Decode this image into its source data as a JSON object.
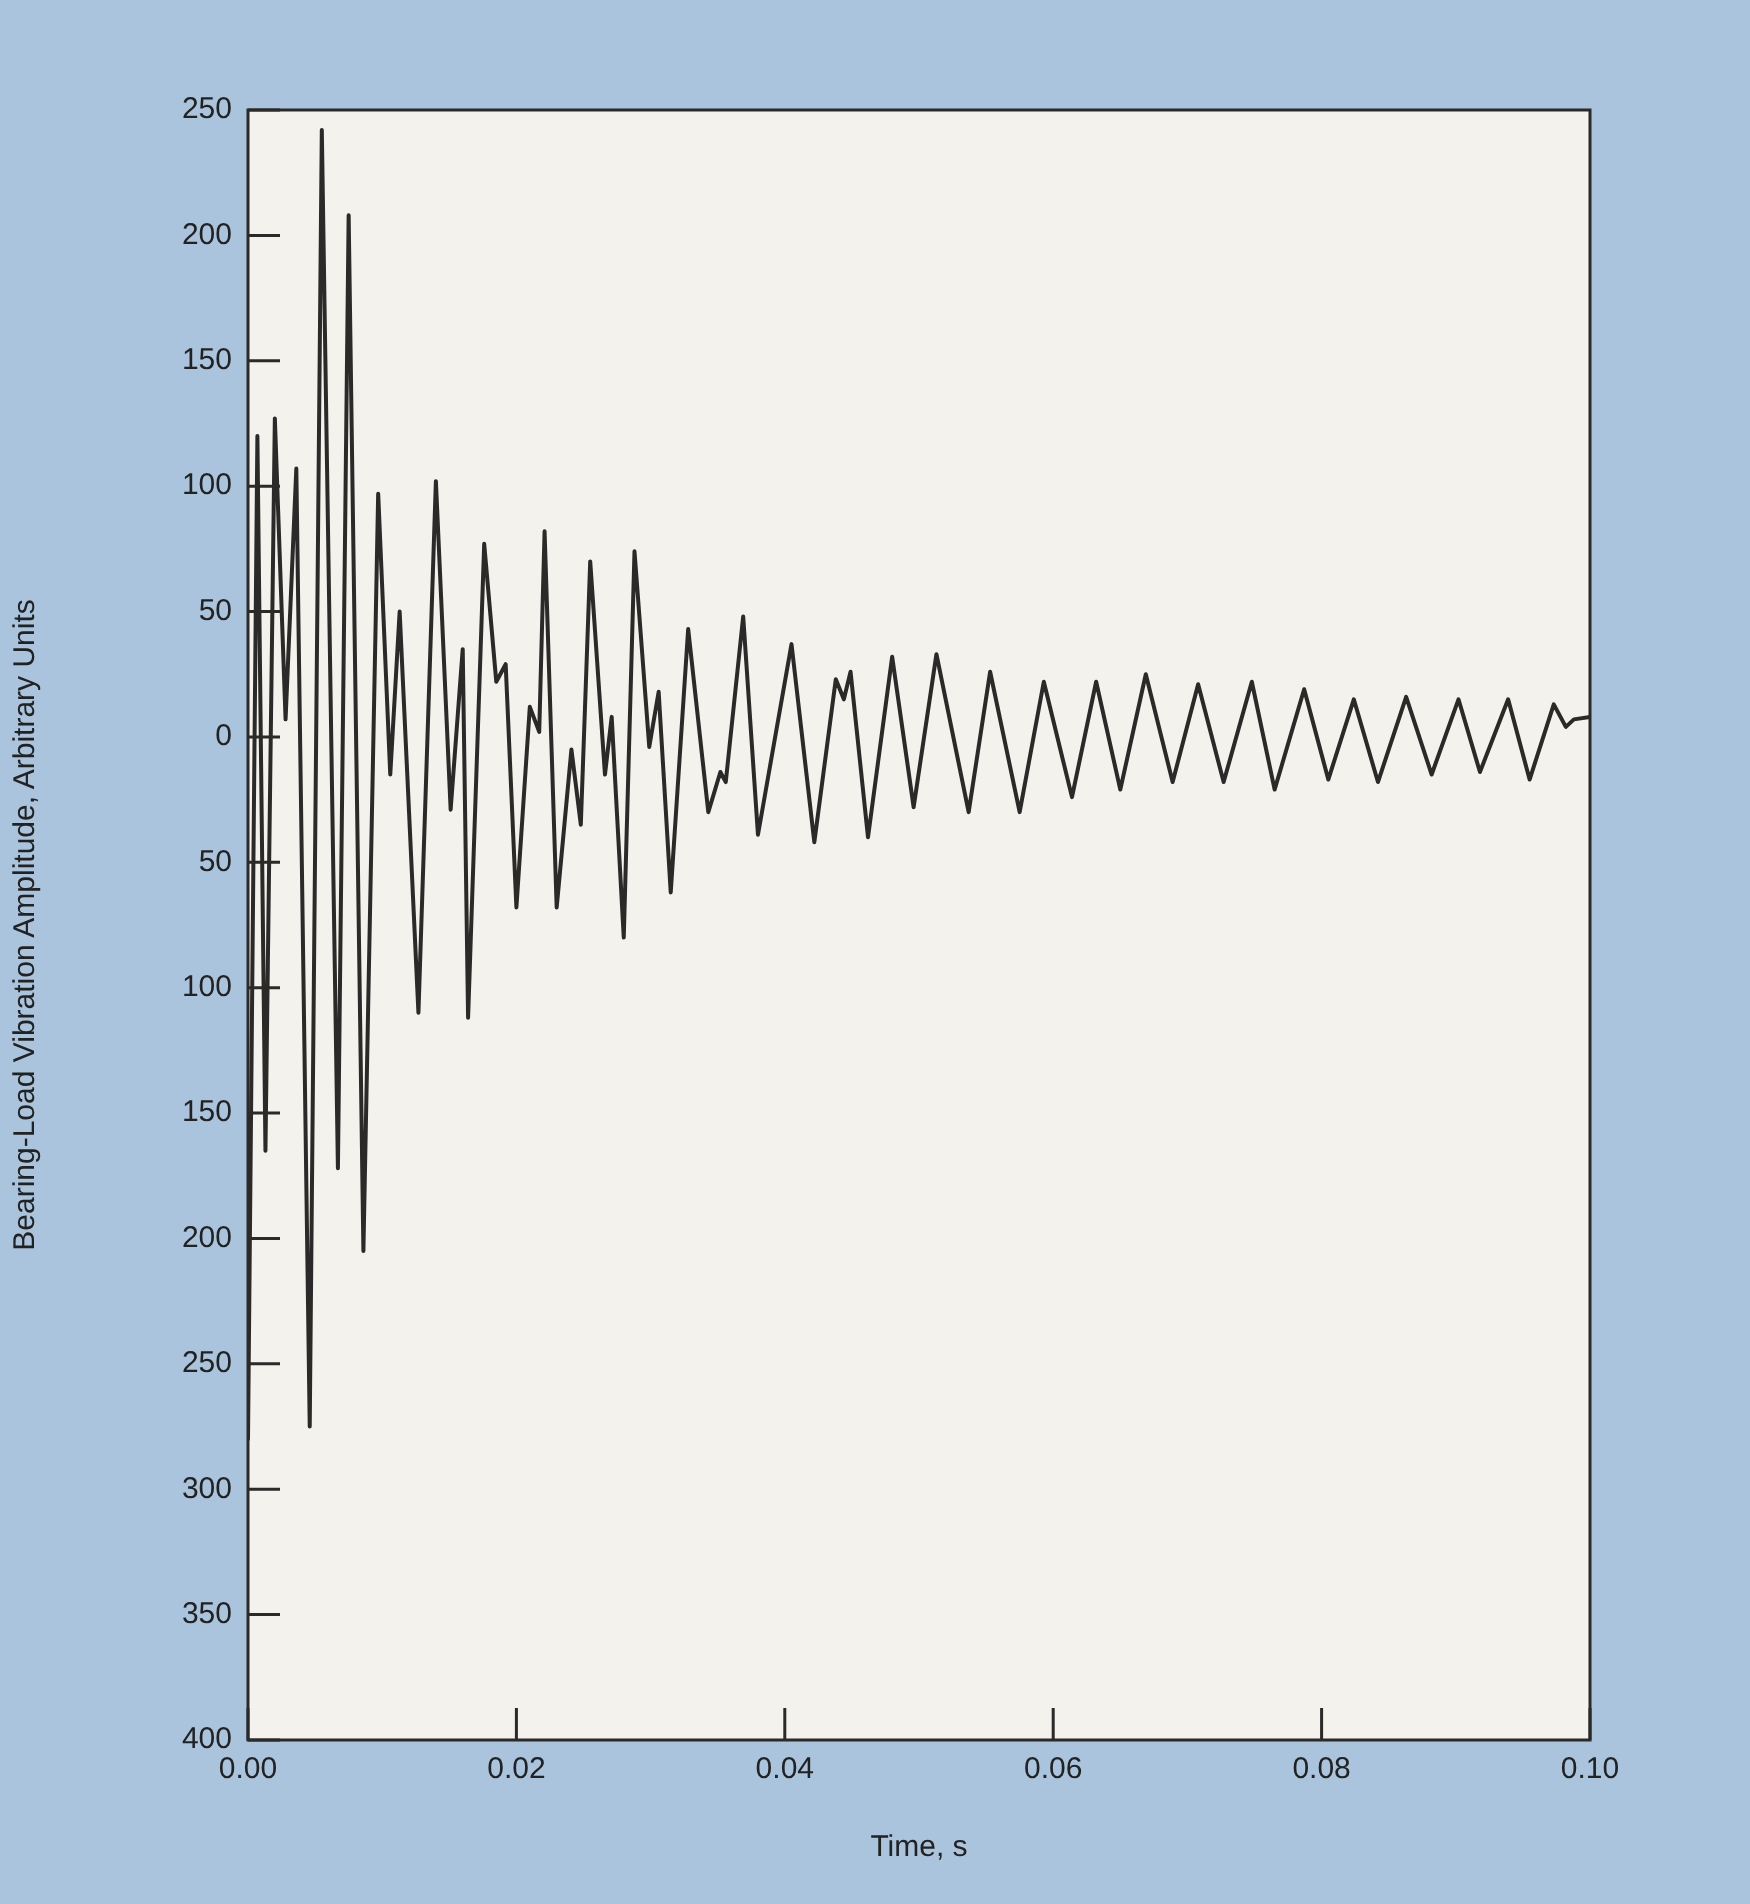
{
  "chart_data": {
    "type": "line",
    "xlabel": "Time, s",
    "ylabel": "Bearing-Load Vibration Amplitude, Arbitrary Units",
    "x": [
      0,
      0.0007,
      0.0013,
      0.002,
      0.0028,
      0.0036,
      0.0046,
      0.0055,
      0.0067,
      0.0075,
      0.0086,
      0.0097,
      0.0106,
      0.0113,
      0.0127,
      0.014,
      0.0151,
      0.016,
      0.0164,
      0.0176,
      0.0185,
      0.0192,
      0.02,
      0.021,
      0.0217,
      0.0221,
      0.023,
      0.0241,
      0.0248,
      0.0255,
      0.0266,
      0.0271,
      0.028,
      0.0288,
      0.0299,
      0.0306,
      0.0315,
      0.0328,
      0.0343,
      0.0352,
      0.0356,
      0.0369,
      0.038,
      0.0405,
      0.0422,
      0.0438,
      0.0444,
      0.0449,
      0.0462,
      0.048,
      0.0496,
      0.0513,
      0.0537,
      0.0553,
      0.0575,
      0.0593,
      0.0614,
      0.0632,
      0.065,
      0.0669,
      0.0689,
      0.0708,
      0.0727,
      0.0748,
      0.0765,
      0.0787,
      0.0805,
      0.0824,
      0.0842,
      0.0863,
      0.0882,
      0.0902,
      0.0918,
      0.0939,
      0.0955,
      0.0973,
      0.0982,
      0.0988,
      0.1
    ],
    "series": [
      {
        "color": "#2b2a28",
        "values": [
          -280,
          120,
          -165,
          127,
          7,
          107,
          -275,
          242,
          -172,
          208,
          -205,
          97,
          -15,
          50,
          -110,
          102,
          -29,
          35,
          -112,
          77,
          22,
          29,
          -68,
          12,
          2,
          82,
          -68,
          -5,
          -35,
          70,
          -15,
          8,
          -80,
          74,
          -4,
          18,
          -62,
          43,
          -30,
          -14,
          -18,
          48,
          -39,
          37,
          -42,
          23,
          15,
          26,
          -40,
          32,
          -28,
          33,
          -30,
          26,
          -30,
          22,
          -24,
          22,
          -21,
          25,
          -18,
          21,
          -18,
          22,
          -21,
          19,
          -17,
          15,
          -18,
          16,
          -15,
          15,
          -14,
          15,
          -17,
          13,
          4,
          7,
          8
        ]
      }
    ],
    "xlim": [
      0,
      0.1
    ],
    "ylim": [
      -400,
      250
    ],
    "xticks": [
      {
        "value": 0,
        "label": "0.00"
      },
      {
        "value": 0.02,
        "label": "0.02"
      },
      {
        "value": 0.04,
        "label": "0.04"
      },
      {
        "value": 0.06,
        "label": "0.06"
      },
      {
        "value": 0.08,
        "label": "0.08"
      },
      {
        "value": 0.1,
        "label": "0.10"
      }
    ],
    "yticks": [
      250,
      200,
      150,
      100,
      50,
      0,
      {
        "value": -50,
        "label": "50"
      },
      {
        "value": -100,
        "label": "100"
      },
      {
        "value": -150,
        "label": "150"
      },
      {
        "value": -200,
        "label": "200"
      },
      {
        "value": -250,
        "label": "250"
      },
      {
        "value": -300,
        "label": "300"
      },
      {
        "value": -350,
        "label": "350"
      },
      {
        "value": -400,
        "label": "400"
      }
    ],
    "legend": false,
    "marker": "none",
    "line_style": "solid"
  }
}
